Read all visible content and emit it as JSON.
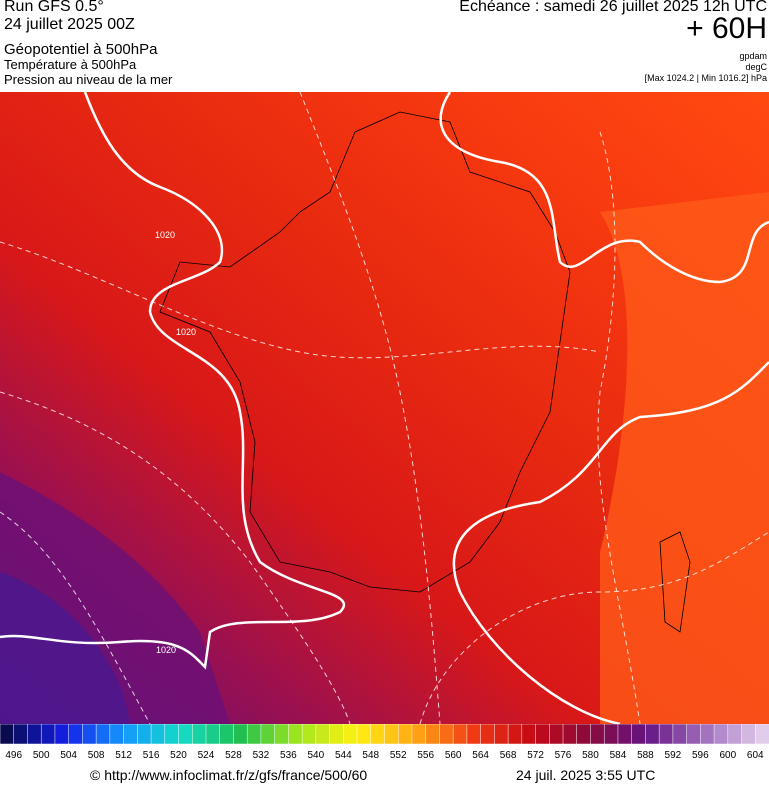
{
  "header": {
    "run": "Run GFS 0.5°",
    "date": "24 juillet 2025 00Z",
    "field1": "Géopotentiel à 500hPa",
    "field2": "Température à 500hPa",
    "field3": "Pression au niveau de la mer",
    "echeance": "Echéance : samedi 26 juillet 2025 12h UTC",
    "lead": "+ 60H",
    "unit1": "gpdam",
    "unit2": "degC",
    "minmax": "[Max 1024.2 | Min 1016.2] hPa"
  },
  "map": {
    "isobar_labels": [
      "1020",
      "1020",
      "1020"
    ]
  },
  "colorbar": {
    "ticks": [
      496,
      500,
      504,
      508,
      512,
      516,
      520,
      524,
      528,
      532,
      536,
      540,
      544,
      548,
      552,
      556,
      560,
      564,
      568,
      572,
      576,
      580,
      584,
      588,
      592,
      596,
      600,
      604
    ]
  },
  "footer": {
    "source": "© http://www.infoclimat.fr/z/gfs/france/500/60",
    "timestamp": "24 juil. 2025  3:55 UTC"
  }
}
